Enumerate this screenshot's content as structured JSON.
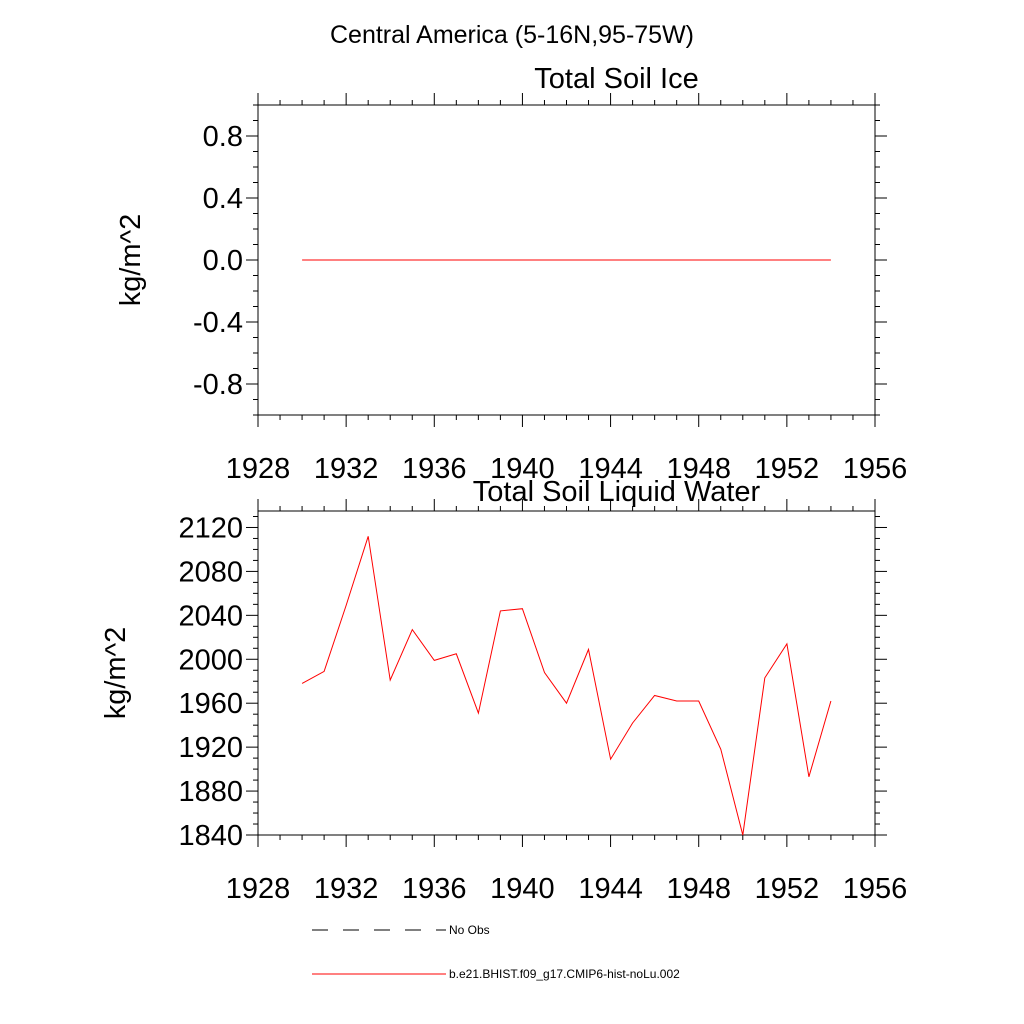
{
  "figure": {
    "title": "Central America (5-16N,95-75W)"
  },
  "chart_data": [
    {
      "type": "line",
      "title": "Total Soil Ice",
      "xlabel": "",
      "ylabel": "kg/m^2",
      "xlim": [
        1928,
        1956
      ],
      "ylim": [
        -1.0,
        1.0
      ],
      "xticks": [
        1928,
        1932,
        1936,
        1940,
        1944,
        1948,
        1952,
        1956
      ],
      "xtick_labels": [
        "1928",
        "1932",
        "1936",
        "1940",
        "1944",
        "1948",
        "1952",
        "1956"
      ],
      "yticks": [
        0.8,
        0.4,
        0.0,
        -0.4,
        -0.8
      ],
      "ytick_labels": [
        "0.8",
        "0.4",
        "0.0",
        "-0.4",
        "-0.8"
      ],
      "grid": false,
      "x": [
        1930,
        1931,
        1932,
        1933,
        1934,
        1935,
        1936,
        1937,
        1938,
        1939,
        1940,
        1941,
        1942,
        1943,
        1944,
        1945,
        1946,
        1947,
        1948,
        1949,
        1950,
        1951,
        1952,
        1953,
        1954
      ],
      "series": [
        {
          "name": "b.e21.BHIST.f09_g17.CMIP6-hist-noLu.002",
          "color": "#ff0000",
          "values": [
            0,
            0,
            0,
            0,
            0,
            0,
            0,
            0,
            0,
            0,
            0,
            0,
            0,
            0,
            0,
            0,
            0,
            0,
            0,
            0,
            0,
            0,
            0,
            0,
            0
          ]
        }
      ]
    },
    {
      "type": "line",
      "title": "Total Soil Liquid Water",
      "xlabel": "",
      "ylabel": "kg/m^2",
      "xlim": [
        1928,
        1956
      ],
      "ylim": [
        1840,
        2135
      ],
      "xticks": [
        1928,
        1932,
        1936,
        1940,
        1944,
        1948,
        1952,
        1956
      ],
      "xtick_labels": [
        "1928",
        "1932",
        "1936",
        "1940",
        "1944",
        "1948",
        "1952",
        "1956"
      ],
      "yticks": [
        2120,
        2080,
        2040,
        2000,
        1960,
        1920,
        1880,
        1840
      ],
      "ytick_labels": [
        "2120",
        "2080",
        "2040",
        "2000",
        "1960",
        "1920",
        "1880",
        "1840"
      ],
      "grid": false,
      "x": [
        1930,
        1931,
        1932,
        1933,
        1934,
        1935,
        1936,
        1937,
        1938,
        1939,
        1940,
        1941,
        1942,
        1943,
        1944,
        1945,
        1946,
        1947,
        1948,
        1949,
        1950,
        1951,
        1952,
        1953,
        1954
      ],
      "series": [
        {
          "name": "b.e21.BHIST.f09_g17.CMIP6-hist-noLu.002",
          "color": "#ff0000",
          "values": [
            1978,
            1989,
            2049,
            2112,
            1981,
            2027,
            1999,
            2005,
            1951,
            2044,
            2046,
            1988,
            1960,
            2009,
            1909,
            1942,
            1967,
            1962,
            1962,
            1918,
            1840,
            1983,
            2014,
            1893,
            1962
          ]
        }
      ]
    }
  ],
  "legend": {
    "placement": "bottom",
    "items": [
      {
        "label": "No Obs",
        "style": "dashed",
        "color": "#000000"
      },
      {
        "label": "b.e21.BHIST.f09_g17.CMIP6-hist-noLu.002",
        "style": "solid",
        "color": "#ff0000"
      }
    ]
  }
}
